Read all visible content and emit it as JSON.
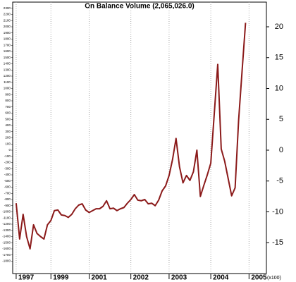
{
  "chart_data": {
    "type": "line",
    "title": "On Balance Volume (2,065,026.0)",
    "y_unit": "(x100)",
    "x": [
      0,
      1,
      2,
      3,
      4,
      5,
      6,
      7,
      8,
      9,
      10,
      11,
      12,
      13,
      14,
      15,
      16,
      17,
      18,
      19,
      20,
      21,
      22,
      23,
      24,
      25,
      26,
      27,
      28,
      29,
      30,
      31,
      32,
      33,
      34,
      35,
      36,
      37,
      38,
      39,
      40,
      41,
      42,
      43,
      44,
      45,
      46,
      47,
      48,
      49,
      50,
      51,
      52,
      53,
      54,
      55,
      56,
      57,
      58,
      59,
      60,
      61,
      62,
      63,
      64,
      65,
      66
    ],
    "series": [
      {
        "name": "On Balance Volume",
        "color": "#8b1a1a",
        "values": [
          -8.6,
          -14.4,
          -10.4,
          -14,
          -16,
          -12.1,
          -13.5,
          -14,
          -14.4,
          -12.1,
          -11.4,
          -9.8,
          -9.7,
          -10.5,
          -10.6,
          -10.9,
          -10.4,
          -9.5,
          -8.9,
          -8.7,
          -9.7,
          -10.1,
          -9.8,
          -9.5,
          -9.5,
          -9.1,
          -8.2,
          -9.5,
          -9.4,
          -9.8,
          -9.5,
          -9.3,
          -8.6,
          -8,
          -7.2,
          -8.1,
          -8.2,
          -8,
          -8.7,
          -8.6,
          -9,
          -8.1,
          -6.6,
          -5.8,
          -4.1,
          -1.5,
          1.9,
          -2.7,
          -5.3,
          -4.1,
          -4.9,
          -3.5,
          0,
          -7.5,
          -5.7,
          -4,
          -2.1,
          5.9,
          13.9,
          0.2,
          -1.8,
          -4.6,
          -7.4,
          -6.1,
          4.8,
          12.8,
          20.65
        ]
      }
    ],
    "xlim": [
      -1,
      72
    ],
    "xticks": [
      {
        "value": 0,
        "label": "1997"
      },
      {
        "value": 10,
        "label": "1999"
      },
      {
        "value": 21,
        "label": "2001"
      },
      {
        "value": 33,
        "label": "2002"
      },
      {
        "value": 44,
        "label": "2003"
      },
      {
        "value": 56,
        "label": "2004"
      },
      {
        "value": 67,
        "label": "2005"
      }
    ],
    "ylim": [
      -20,
      24
    ],
    "yticks": [
      -15,
      -10,
      -5,
      0,
      5,
      10,
      15,
      20
    ],
    "y2lim": [
      -2000,
      2400
    ],
    "y2ticks": [
      -1800,
      -1700,
      -1600,
      -1500,
      -1400,
      -1300,
      -1200,
      -1100,
      -1000,
      -900,
      -800,
      -700,
      -600,
      -500,
      -400,
      -300,
      -200,
      -100,
      0,
      100,
      200,
      300,
      400,
      500,
      600,
      700,
      800,
      900,
      1000,
      1100,
      1200,
      1300,
      1400,
      1500,
      1600,
      1700,
      1800,
      1900,
      2000,
      2100,
      2200,
      2300
    ],
    "grid": true
  }
}
